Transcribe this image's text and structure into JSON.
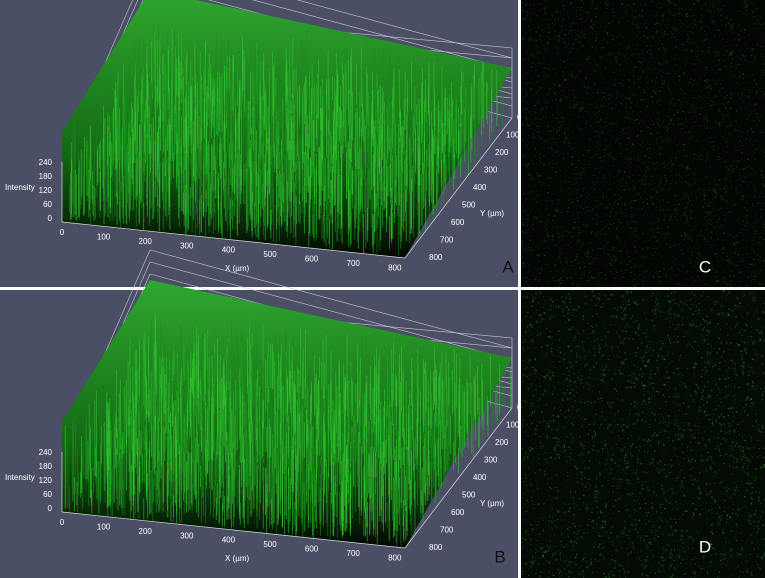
{
  "plots": [
    {
      "panel": "A",
      "z_axis": {
        "label": "Intensity",
        "ticks": [
          240,
          180,
          120,
          60,
          0
        ]
      },
      "x_axis": {
        "label": "X (µm)",
        "ticks": [
          0,
          100,
          200,
          300,
          400,
          500,
          600,
          700,
          800
        ]
      },
      "y_axis": {
        "label": "Y (µm)",
        "ticks": [
          0,
          100,
          200,
          300,
          400,
          500,
          600,
          700,
          800
        ]
      }
    },
    {
      "panel": "B",
      "z_axis": {
        "label": "Intensity",
        "ticks": [
          240,
          180,
          120,
          60,
          0
        ]
      },
      "x_axis": {
        "label": "X (µm)",
        "ticks": [
          0,
          100,
          200,
          300,
          400,
          500,
          600,
          700,
          800
        ]
      },
      "y_axis": {
        "label": "Y (µm)",
        "ticks": [
          0,
          100,
          200,
          300,
          400,
          500,
          600,
          700,
          800
        ]
      }
    }
  ],
  "images": [
    {
      "panel": "C"
    },
    {
      "panel": "D"
    }
  ]
}
